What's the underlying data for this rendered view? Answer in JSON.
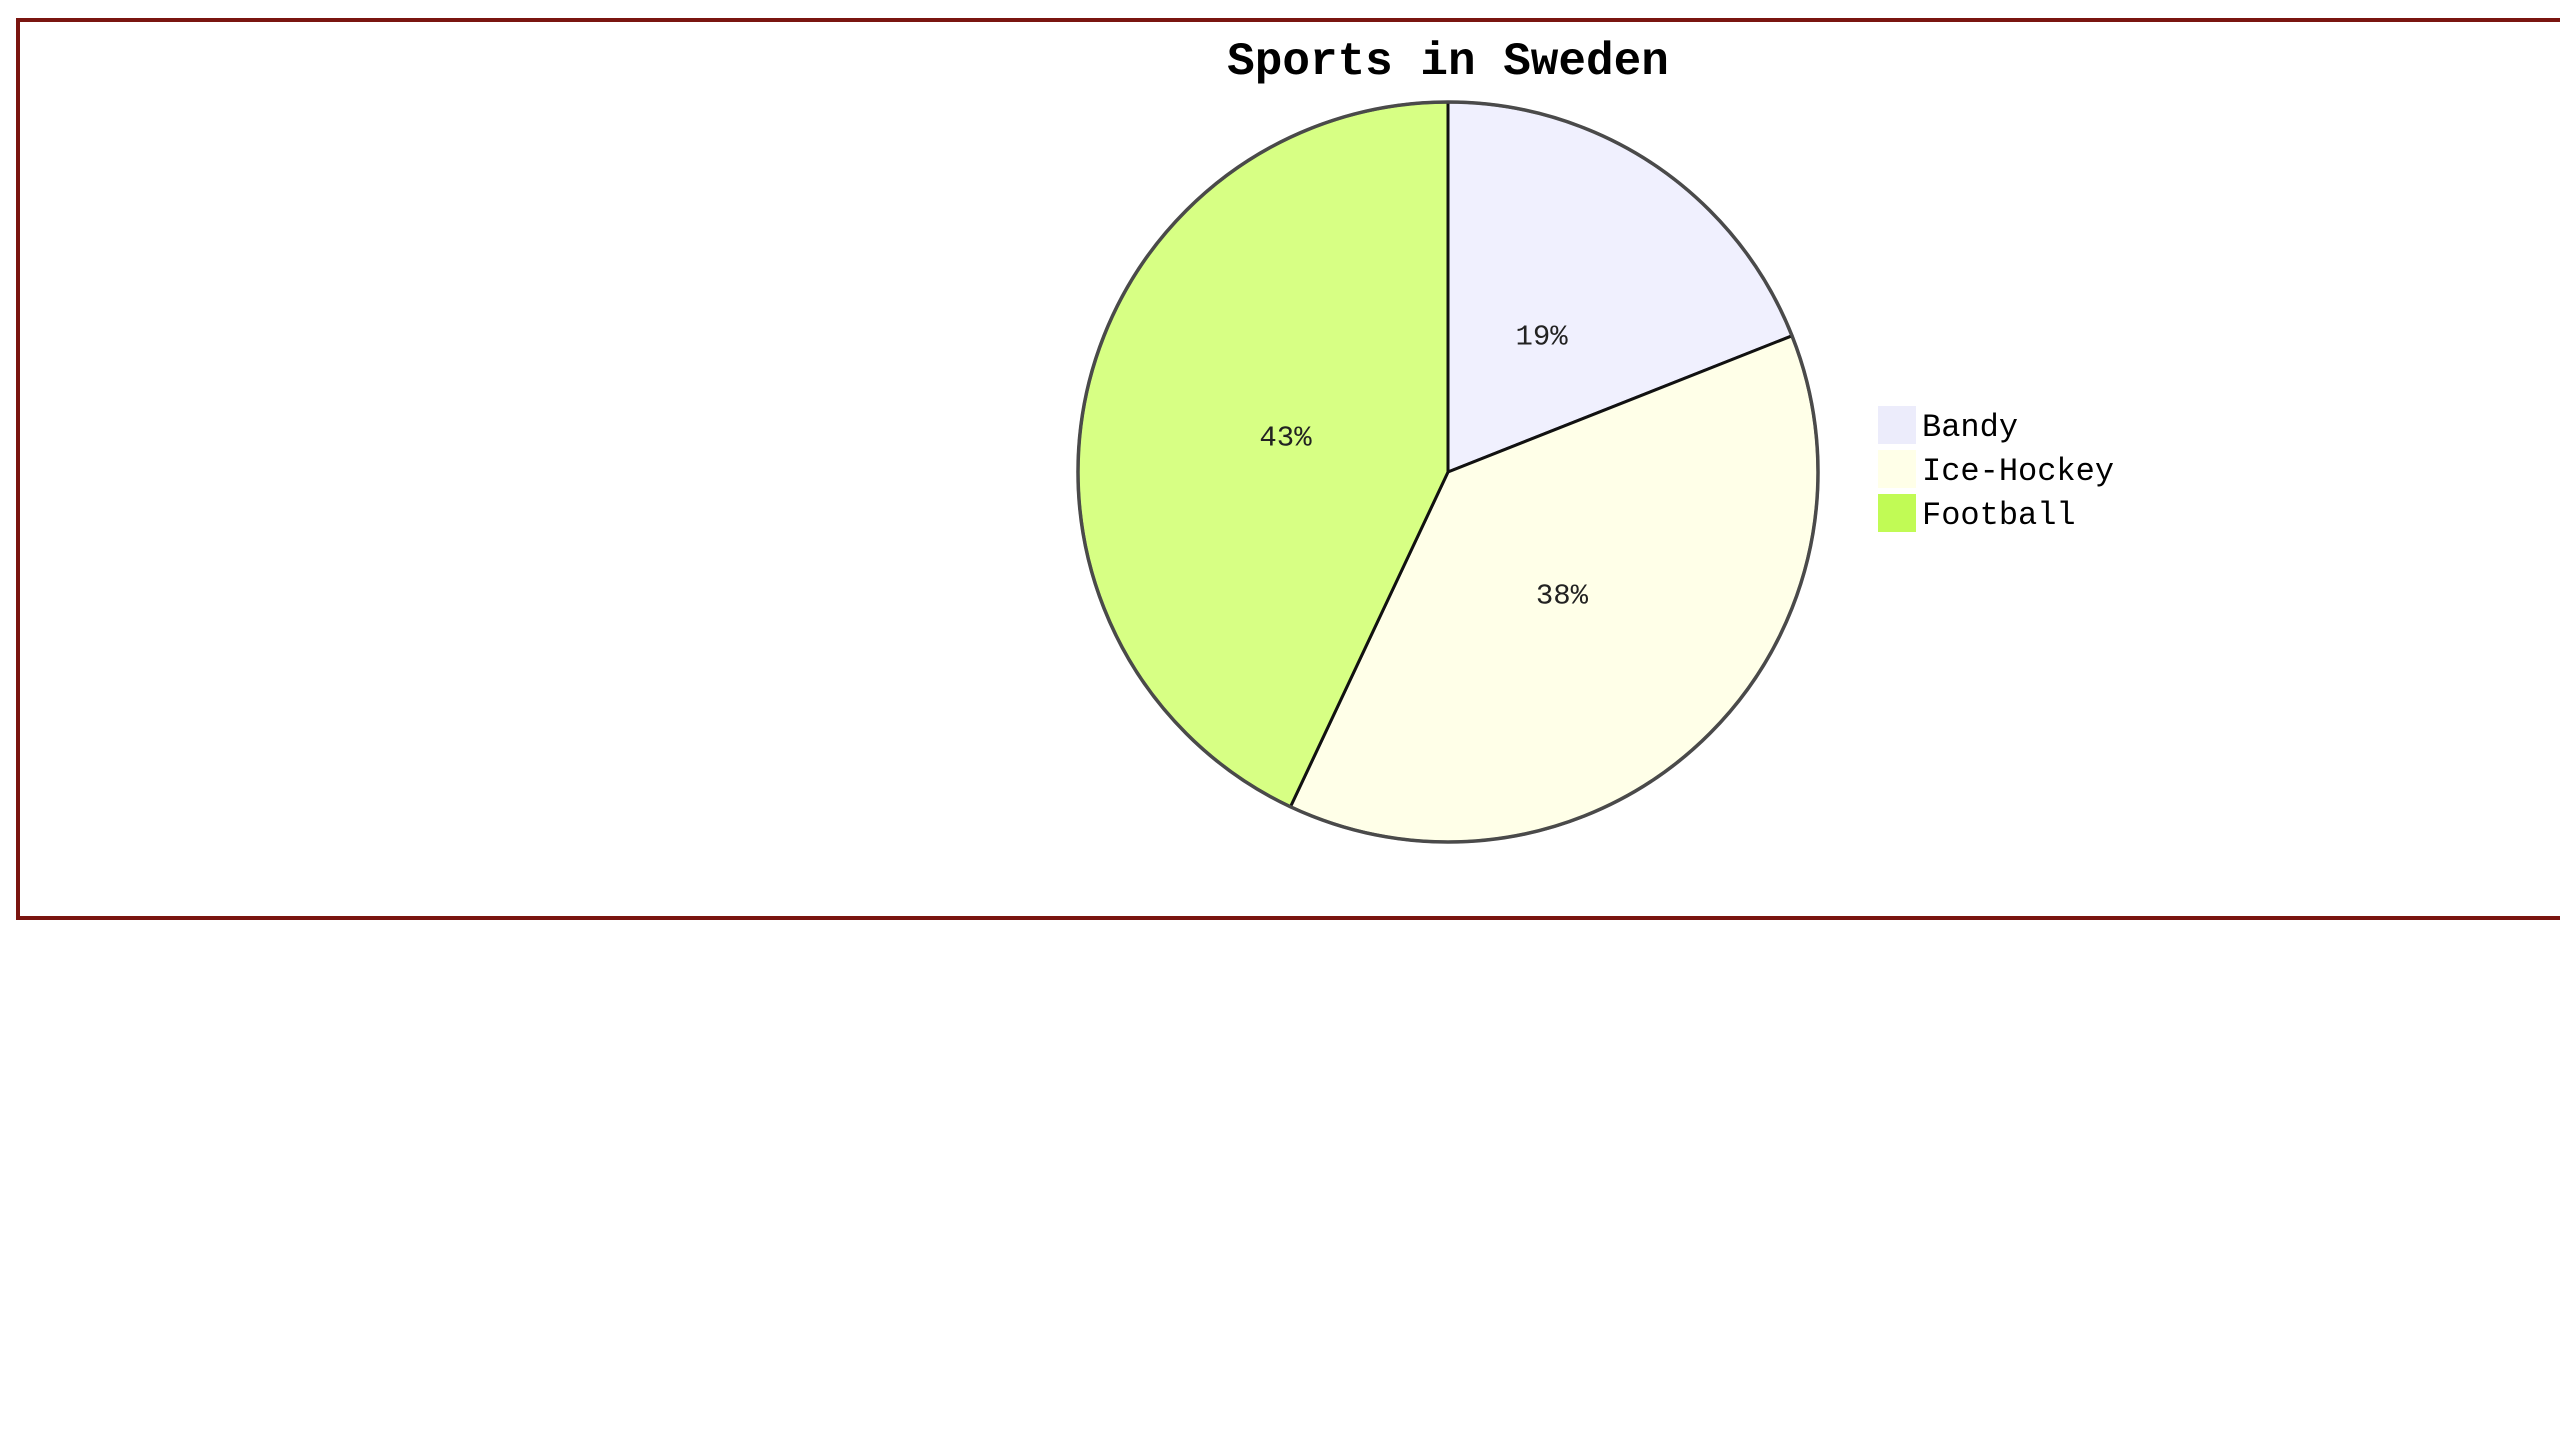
{
  "chart_data": {
    "type": "pie",
    "title": "Sports in Sweden",
    "slices": [
      {
        "label": "Bandy",
        "value": 19,
        "display": "19%",
        "color": "#f0f0fe"
      },
      {
        "label": "Ice-Hockey",
        "value": 38,
        "display": "38%",
        "color": "#ffffe8"
      },
      {
        "label": "Football",
        "value": 43,
        "display": "43%",
        "color": "#d7ff84"
      }
    ],
    "legend_colors": [
      "#ececfb",
      "#ffffe8",
      "#c1fb55"
    ],
    "legend_placement": "right",
    "frame_color": "#7a1510"
  }
}
